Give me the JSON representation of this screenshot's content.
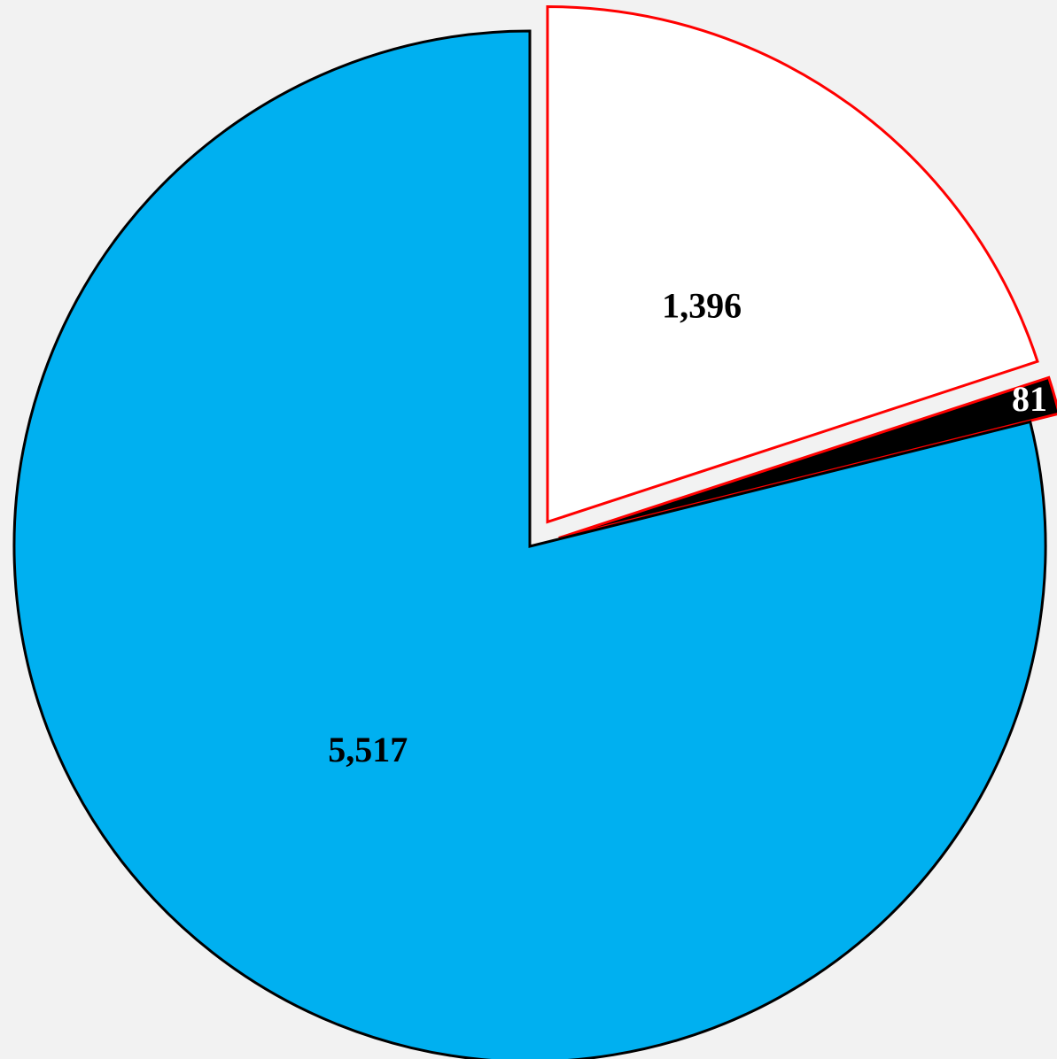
{
  "chart_data": {
    "type": "pie",
    "values": [
      1396,
      81,
      5517
    ],
    "value_labels": [
      "1,396",
      "81",
      "5,517"
    ],
    "colors": [
      "#ffffff",
      "#000000",
      "#00b0f0"
    ],
    "edgecolors": [
      "#ff0000",
      "#ff0000",
      "#000000"
    ],
    "label_colors": [
      "#000000",
      "#ffffff",
      "#000000"
    ],
    "explode": [
      true,
      true,
      false
    ]
  }
}
